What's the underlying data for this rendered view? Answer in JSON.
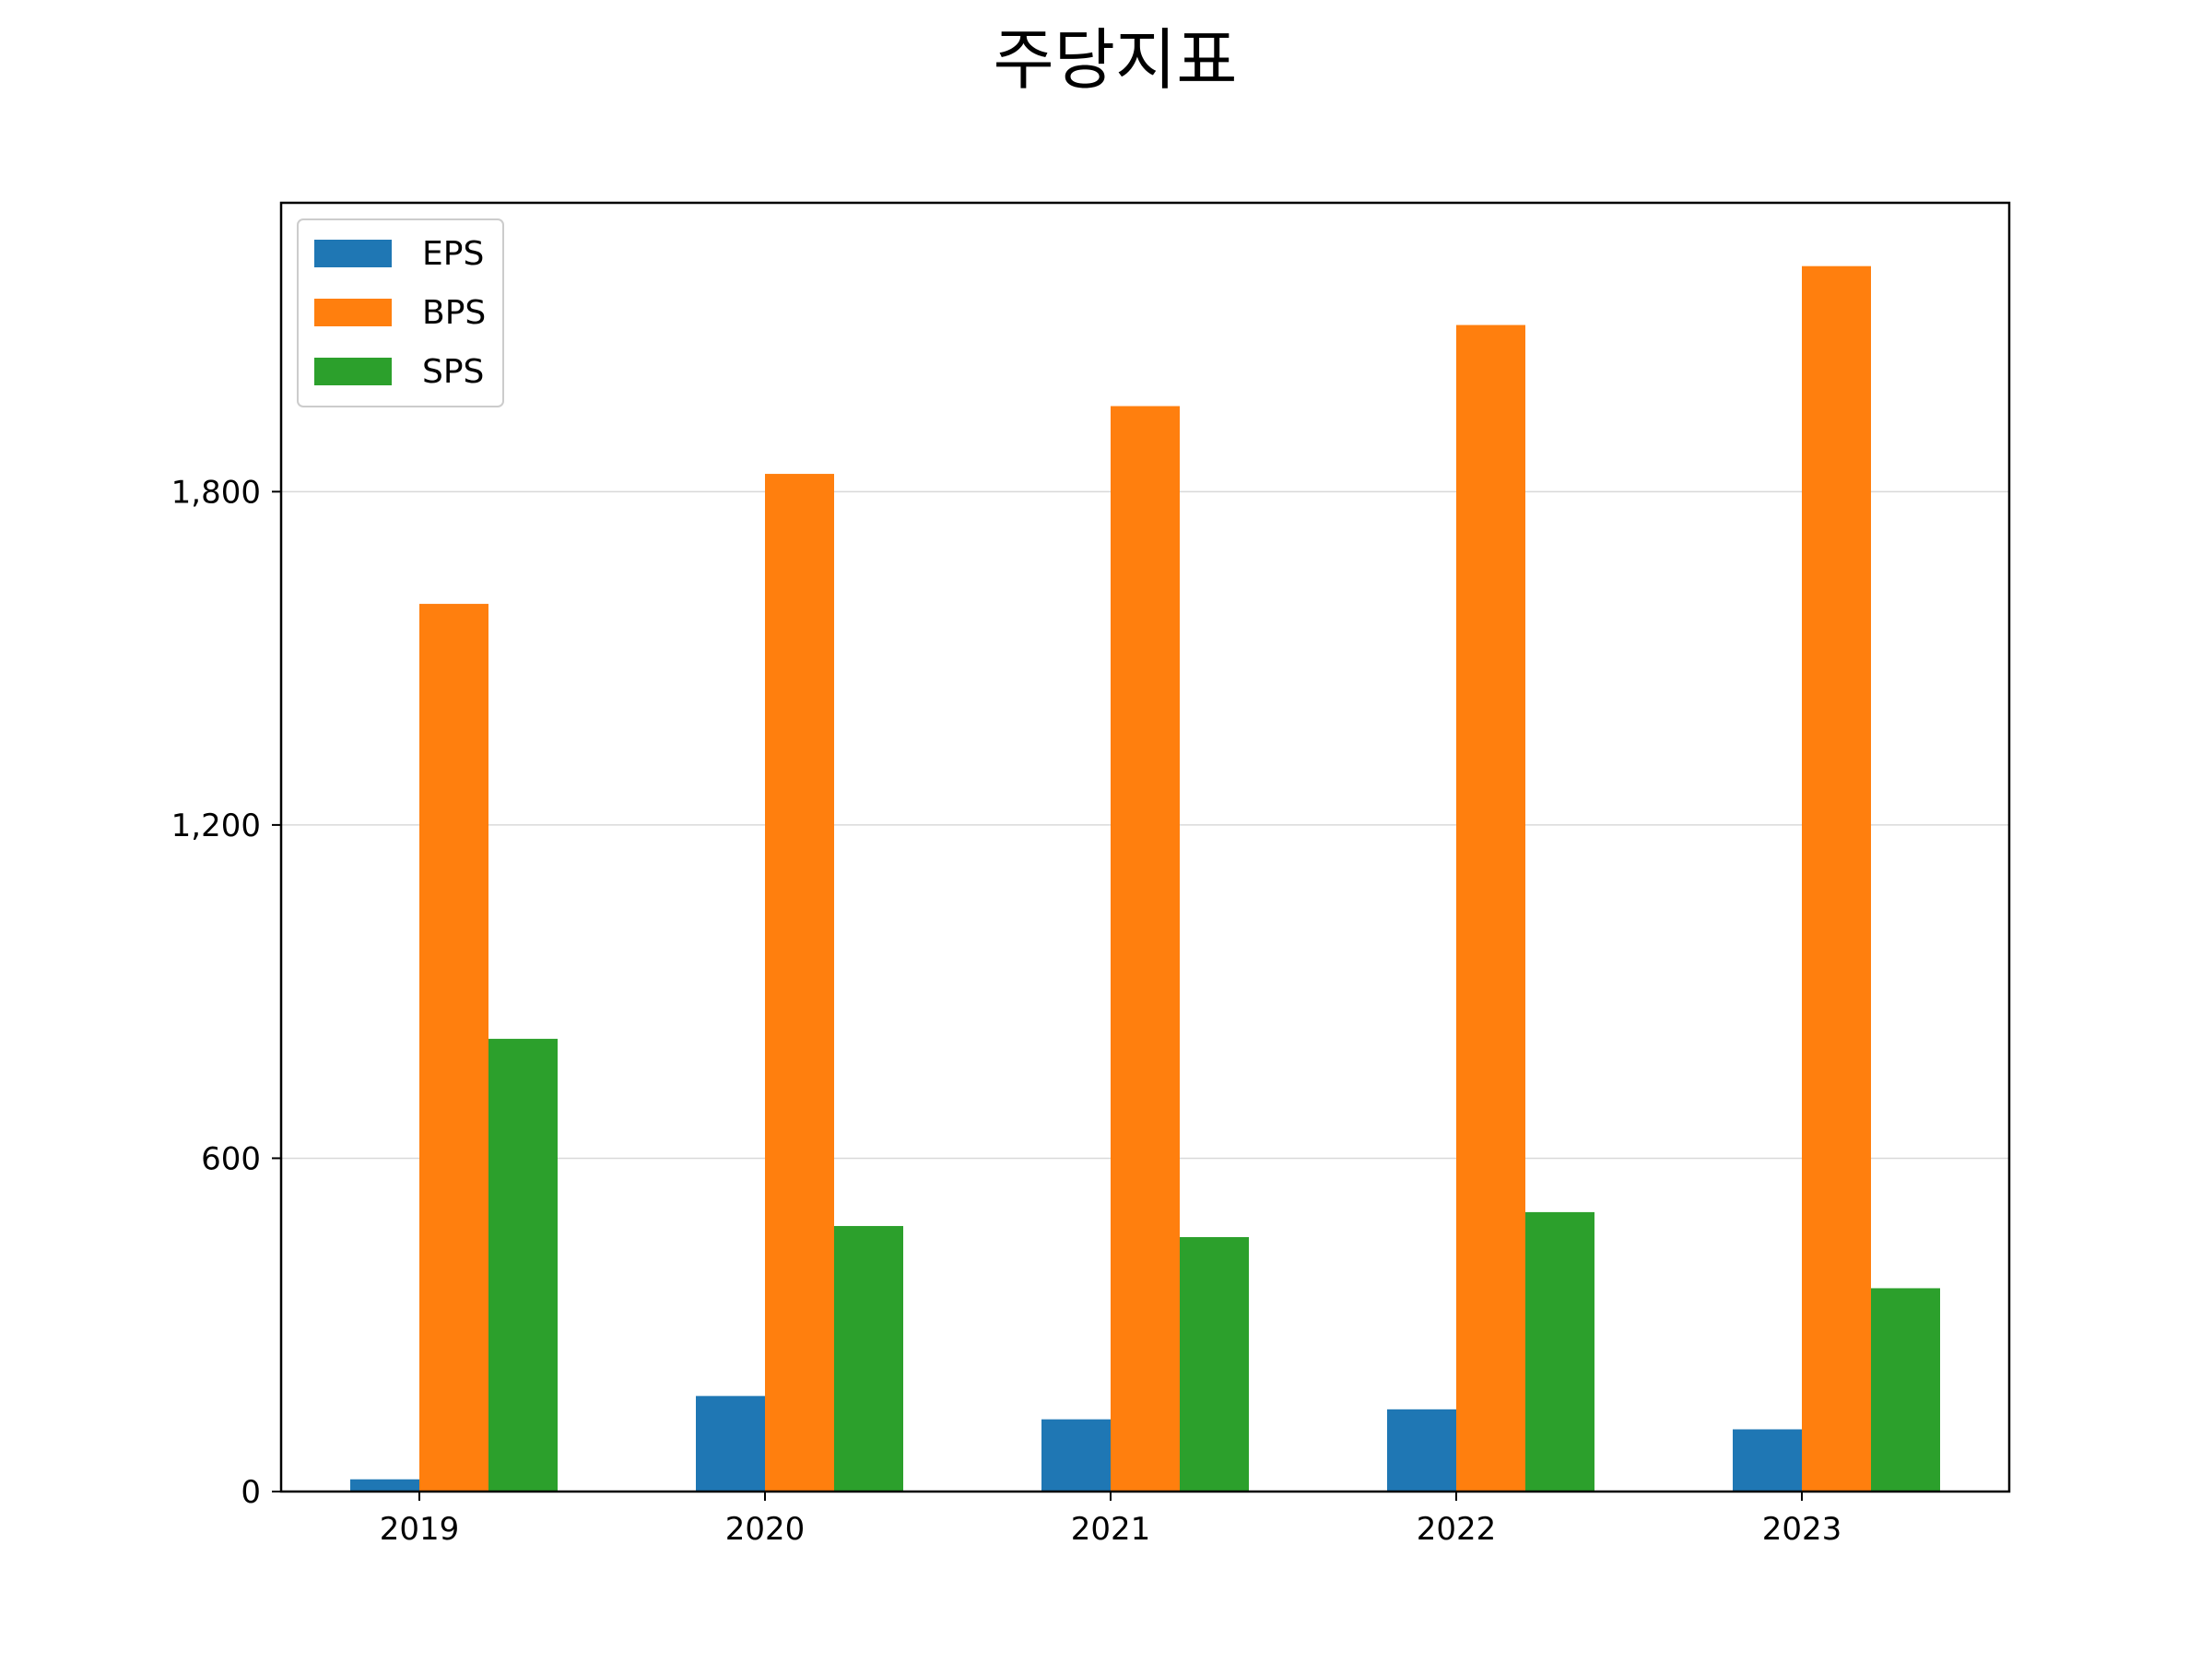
{
  "chart_data": {
    "type": "bar",
    "title": "주당지표",
    "xlabel": "",
    "ylabel": "",
    "categories": [
      "2019",
      "2020",
      "2021",
      "2022",
      "2023"
    ],
    "series": [
      {
        "name": "EPS",
        "color": "#1f77b4",
        "values": [
          22,
          172,
          130,
          148,
          112
        ]
      },
      {
        "name": "BPS",
        "color": "#ff7f0e",
        "values": [
          1598,
          1832,
          1954,
          2100,
          2206
        ]
      },
      {
        "name": "SPS",
        "color": "#2ca02c",
        "values": [
          815,
          478,
          458,
          503,
          366
        ]
      }
    ],
    "ylim": [
      0,
      2320
    ],
    "yticks": [
      0,
      600,
      1200,
      1800
    ],
    "ytick_labels": [
      "0",
      "600",
      "1,200",
      "1,800"
    ],
    "grid": {
      "y": true,
      "x": false
    },
    "legend": {
      "position": "top-left",
      "entries": [
        "EPS",
        "BPS",
        "SPS"
      ]
    }
  }
}
